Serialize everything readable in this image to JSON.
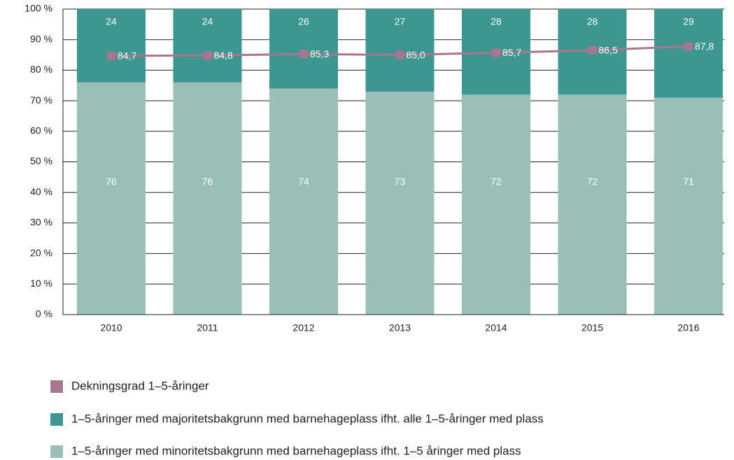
{
  "chart_data": {
    "type": "bar",
    "stacked": true,
    "categories": [
      "2010",
      "2011",
      "2012",
      "2013",
      "2014",
      "2015",
      "2016"
    ],
    "series": [
      {
        "name": "Dekningsgrad 1–5-åringer",
        "type": "line",
        "color": "#a8768f",
        "values": [
          84.7,
          84.8,
          85.3,
          85.0,
          85.7,
          86.5,
          87.8
        ],
        "value_labels": [
          "84,7",
          "84,8",
          "85,3",
          "85,0",
          "85,7",
          "86,5",
          "87,8"
        ]
      },
      {
        "name": "1–5-åringer med majoritetsbakgrunn med barnehageplass ifht. alle 1–5-åringer med plass",
        "color": "#3d9690",
        "values": [
          24,
          24,
          26,
          27,
          28,
          28,
          29
        ]
      },
      {
        "name": "1–5-åringer med minoritetsbakgrunn med barnehageplass ifht. 1–5 åringer med plass",
        "color": "#9abfb7",
        "values": [
          76,
          76,
          74,
          73,
          72,
          72,
          71
        ]
      }
    ],
    "ylim": [
      0,
      100
    ],
    "yticks": [
      {
        "value": 0,
        "label": "0 %"
      },
      {
        "value": 10,
        "label": "10 %"
      },
      {
        "value": 20,
        "label": "20 %"
      },
      {
        "value": 30,
        "label": "30 %"
      },
      {
        "value": 40,
        "label": "40 %"
      },
      {
        "value": 50,
        "label": "50 %"
      },
      {
        "value": 60,
        "label": "60 %"
      },
      {
        "value": 70,
        "label": "70 %"
      },
      {
        "value": 80,
        "label": "80 %"
      },
      {
        "value": 90,
        "label": "90 %"
      },
      {
        "value": 100,
        "label": "100 %"
      }
    ],
    "grid": true
  }
}
